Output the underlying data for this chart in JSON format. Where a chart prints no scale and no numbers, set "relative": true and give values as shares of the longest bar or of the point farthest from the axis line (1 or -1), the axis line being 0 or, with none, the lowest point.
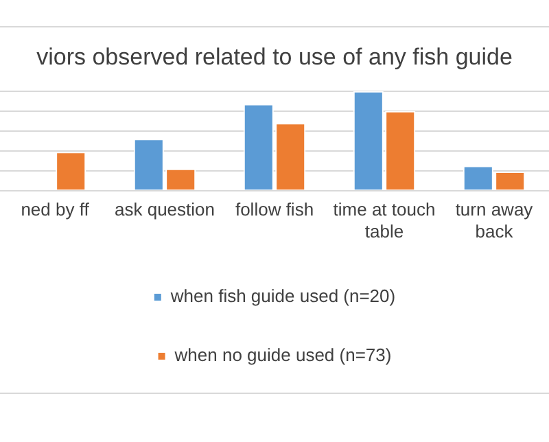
{
  "chart_data": {
    "type": "bar",
    "title": "viors observed related to use of any fish guide",
    "categories": [
      "ned by ff",
      "ask question",
      "follow fish",
      "time at touch table",
      "turn away back"
    ],
    "relative": true,
    "series": [
      {
        "name": "when fish guide used (n=20)",
        "color": "#5b9bd5",
        "values": [
          null,
          0.52,
          0.87,
          1,
          0.25
        ]
      },
      {
        "name": "when no guide used (n=73)",
        "color": "#ed7d31",
        "values": [
          0.39,
          0.22,
          0.68,
          0.8,
          0.19
        ]
      }
    ],
    "grid": "y",
    "legend": "bottom"
  }
}
